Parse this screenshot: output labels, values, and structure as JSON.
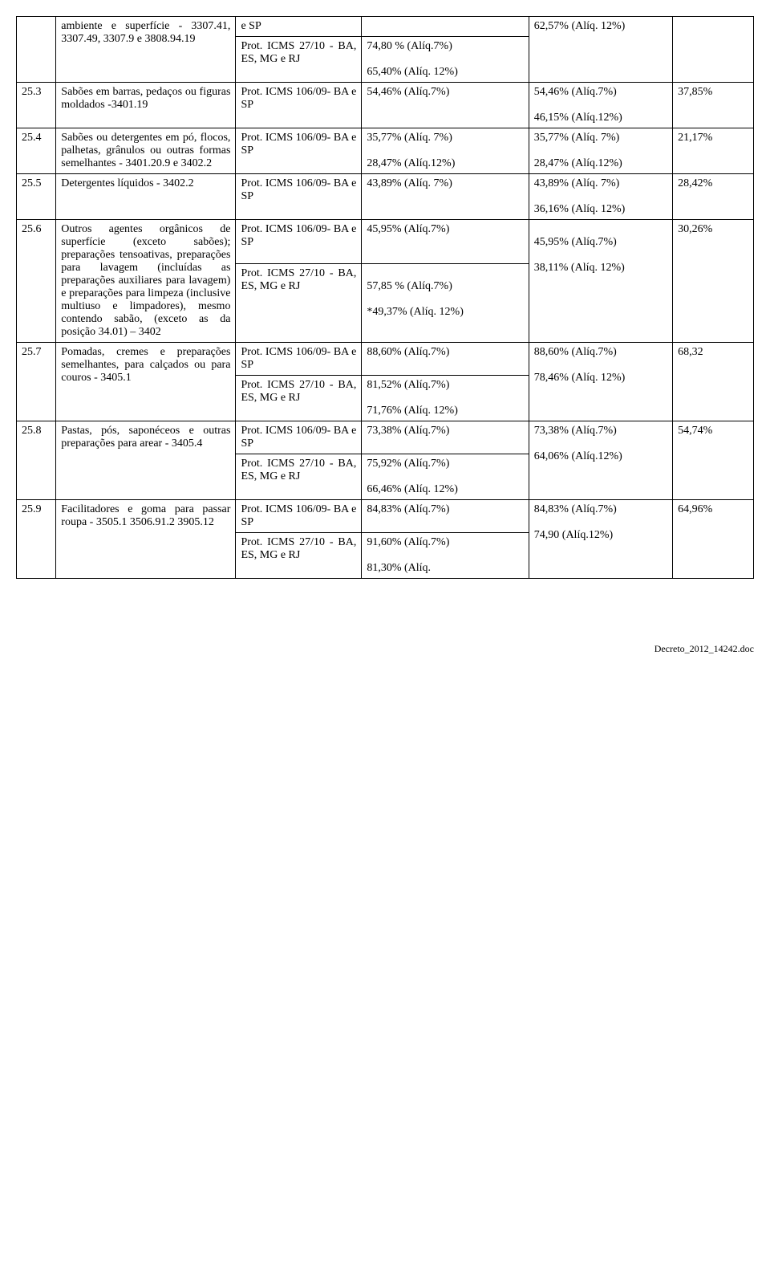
{
  "rows": [
    {
      "num": "",
      "desc": "ambiente e superfície - 3307.41, 3307.49, 3307.9 e 3808.94.19",
      "protA": "e SP",
      "protB": "Prot. ICMS 27/10 - BA, ES, MG e RJ",
      "mvaA": "",
      "mvaB_top": "74,80 % (Alíq.7%)",
      "mvaB_bot": "65,40% (Alíq. 12%)",
      "adjA": "62,57% (Alíq. 12%)",
      "pct": ""
    },
    {
      "num": "25.3",
      "desc": "Sabões em barras, pedaços ou figuras moldados -3401.19",
      "prot": "Prot. ICMS 106/09- BA e SP",
      "mva": "54,46% (Alíq.7%)",
      "adj_top": "54,46% (Alíq.7%)",
      "adj_bot": "46,15% (Alíq.12%)",
      "pct": "37,85%"
    },
    {
      "num": "25.4",
      "desc": "Sabões ou detergentes em pó, flocos, palhetas, grânulos ou outras formas semelhantes - 3401.20.9 e 3402.2",
      "prot": "Prot. ICMS 106/09- BA e SP",
      "mva_top": "35,77% (Alíq. 7%)",
      "mva_bot": "28,47% (Alíq.12%)",
      "adj_top": "35,77% (Alíq. 7%)",
      "adj_bot": "28,47% (Alíq.12%)",
      "pct": "21,17%"
    },
    {
      "num": "25.5",
      "desc": "Detergentes líquidos - 3402.2",
      "prot": "Prot. ICMS 106/09- BA e SP",
      "mva": "43,89% (Alíq. 7%)",
      "adj_top": "43,89% (Alíq. 7%)",
      "adj_bot": "36,16% (Alíq. 12%)",
      "pct": "28,42%"
    },
    {
      "num": "25.6",
      "desc": "Outros agentes orgânicos de superfície (exceto sabões); preparações tensoativas, preparações para lavagem (incluídas as preparações auxiliares para lavagem) e preparações para limpeza (inclusive multiuso e limpadores), mesmo contendo sabão, (exceto as da posição 34.01) – 3402",
      "protA": "Prot. ICMS 106/09- BA e SP",
      "protB": "Prot. ICMS 27/10 - BA, ES, MG e RJ",
      "mvaA": "45,95% (Alíq.7%)",
      "mvaB_top": "57,85 % (Alíq.7%)",
      "mvaB_bot": "*49,37% (Alíq. 12%)",
      "adj_top": "45,95% (Alíq.7%)",
      "adj_bot": "38,11% (Alíq. 12%)",
      "pct": "30,26%"
    },
    {
      "num": "25.7",
      "desc": "Pomadas, cremes e preparações semelhantes, para calçados ou para couros - 3405.1",
      "protA": "Prot. ICMS 106/09- BA e SP",
      "protB": "Prot. ICMS 27/10 - BA, ES, MG e RJ",
      "mvaA": "88,60% (Alíq.7%)",
      "mvaB_top": "81,52% (Alíq.7%)",
      "mvaB_bot": "71,76% (Alíq. 12%)",
      "adj_top": "88,60% (Alíq.7%)",
      "adj_bot": "78,46% (Alíq. 12%)",
      "pct": "68,32"
    },
    {
      "num": "25.8",
      "desc": "Pastas, pós, saponéceos e outras preparações para arear - 3405.4",
      "protA": "Prot. ICMS 106/09- BA e SP",
      "protB": "Prot. ICMS 27/10 - BA, ES, MG e RJ",
      "mvaA": "73,38% (Alíq.7%)",
      "mvaB_top": "75,92% (Alíq.7%)",
      "mvaB_bot": "66,46% (Alíq. 12%)",
      "adj_top": "73,38% (Alíq.7%)",
      "adj_bot": "64,06% (Alíq.12%)",
      "pct": "54,74%"
    },
    {
      "num": "25.9",
      "desc": "Facilitadores e goma para passar roupa - 3505.1 3506.91.2 3905.12",
      "protA": "Prot. ICMS 106/09- BA e SP",
      "protB": "Prot. ICMS 27/10 - BA, ES, MG e RJ",
      "mvaA": "84,83% (Alíq.7%)",
      "mvaB_top": "91,60% (Alíq.7%)",
      "mvaB_bot": "81,30% (Alíq.",
      "adj_top": "84,83% (Alíq.7%)",
      "adj_bot": "74,90 (Alíq.12%)",
      "pct": "64,96%"
    }
  ],
  "footer": "Decreto_2012_14242.doc"
}
